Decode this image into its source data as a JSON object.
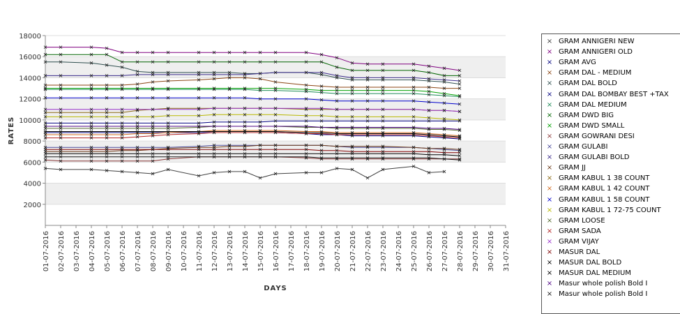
{
  "chart_data": {
    "type": "line",
    "title": "",
    "xlabel": "DAYS",
    "ylabel": "RATES",
    "ylim": [
      0,
      18000
    ],
    "yticks": [
      2000,
      4000,
      6000,
      8000,
      10000,
      12000,
      14000,
      16000,
      18000
    ],
    "grid": "alternating horizontal bands",
    "legend_position": "right",
    "marker": "x",
    "categories": [
      "01-07-2016",
      "02-07-2016",
      "03-07-2016",
      "04-07-2016",
      "05-07-2016",
      "06-07-2016",
      "07-07-2016",
      "08-07-2016",
      "09-07-2016",
      "10-07-2016",
      "11-07-2016",
      "12-07-2016",
      "13-07-2016",
      "14-07-2016",
      "15-07-2016",
      "16-07-2016",
      "17-07-2016",
      "18-07-2016",
      "19-07-2016",
      "20-07-2016",
      "21-07-2016",
      "22-07-2016",
      "23-07-2016",
      "24-07-2016",
      "25-07-2016",
      "26-07-2016",
      "27-07-2016",
      "28-07-2016",
      "29-07-2016",
      "30-07-2016",
      "31-07-2016"
    ],
    "series": [
      {
        "name": "GRAM ANNIGERI NEW",
        "color": "#404040",
        "values": [
          5400,
          5300,
          null,
          5300,
          5200,
          5100,
          5000,
          4900,
          5300,
          null,
          4700,
          5000,
          5100,
          5100,
          4500,
          4900,
          null,
          5000,
          5000,
          5400,
          5300,
          4500,
          5300,
          null,
          5600,
          5000,
          5100,
          null,
          null,
          null,
          null
        ]
      },
      {
        "name": "GRAM ANNIGERI OLD",
        "color": "#800080",
        "values": [
          16900,
          16900,
          null,
          16900,
          16800,
          16400,
          16400,
          16400,
          16400,
          null,
          16400,
          16400,
          16400,
          16400,
          16400,
          16400,
          null,
          16400,
          16200,
          15900,
          15400,
          15300,
          15300,
          null,
          15300,
          15100,
          14900,
          14700,
          null,
          null,
          null
        ]
      },
      {
        "name": "GRAM AVG",
        "color": "#000080",
        "values": [
          8800,
          8800,
          null,
          8800,
          8800,
          8800,
          8800,
          8800,
          8800,
          null,
          8800,
          8800,
          8800,
          8800,
          8800,
          8800,
          null,
          8700,
          8600,
          8600,
          8500,
          8500,
          8500,
          null,
          8500,
          8400,
          8300,
          8200,
          null,
          null,
          null
        ]
      },
      {
        "name": "GRAM DAL - MEDIUM",
        "color": "#8b4513",
        "values": [
          13300,
          13300,
          null,
          13300,
          13300,
          13300,
          13400,
          13600,
          13700,
          null,
          13800,
          13900,
          14000,
          14000,
          13900,
          13600,
          null,
          13300,
          13200,
          13100,
          13100,
          13100,
          13100,
          null,
          13100,
          13100,
          13000,
          13000,
          null,
          null,
          null
        ]
      },
      {
        "name": "GRAM DAL BOLD",
        "color": "#2f4f4f",
        "values": [
          15500,
          15500,
          null,
          15400,
          15200,
          15000,
          14600,
          14500,
          14500,
          null,
          14500,
          14500,
          14500,
          14400,
          14400,
          14500,
          null,
          14500,
          14300,
          14000,
          13800,
          13800,
          13800,
          null,
          13800,
          13700,
          13600,
          13400,
          null,
          null,
          null
        ]
      },
      {
        "name": "GRAM DAL BOMBAY BEST +TAX",
        "color": "#000080",
        "values": [
          9700,
          9700,
          null,
          9700,
          9700,
          9700,
          9700,
          9700,
          9700,
          null,
          9700,
          9800,
          9800,
          9800,
          9800,
          9900,
          null,
          9900,
          9900,
          9900,
          9900,
          9900,
          9900,
          null,
          9900,
          9900,
          9900,
          9900,
          null,
          null,
          null
        ]
      },
      {
        "name": "GRAM DAL MEDIUM",
        "color": "#1e8b57",
        "values": [
          12900,
          12900,
          null,
          12900,
          12900,
          12900,
          12900,
          12900,
          12900,
          null,
          12900,
          12900,
          12900,
          12900,
          12800,
          12800,
          null,
          12700,
          12600,
          12500,
          12500,
          12500,
          12500,
          null,
          12500,
          12400,
          12300,
          12200,
          null,
          null,
          null
        ]
      },
      {
        "name": "GRAM DWD BIG",
        "color": "#006400",
        "values": [
          16200,
          16200,
          null,
          16200,
          16200,
          15500,
          15500,
          15500,
          15500,
          null,
          15500,
          15500,
          15500,
          15500,
          15500,
          15500,
          null,
          15500,
          15500,
          15000,
          14700,
          14700,
          14700,
          null,
          14700,
          14500,
          14200,
          14200,
          null,
          null,
          null
        ]
      },
      {
        "name": "GRAM DWD SMALL",
        "color": "#00a000",
        "values": [
          13000,
          13000,
          null,
          13000,
          13000,
          13000,
          13000,
          13000,
          13000,
          null,
          13000,
          13000,
          13000,
          13000,
          13000,
          13000,
          null,
          12900,
          12800,
          12800,
          12800,
          12800,
          12800,
          null,
          12800,
          12700,
          12500,
          12300,
          null,
          null,
          null
        ]
      },
      {
        "name": "GRAM GOWRANI DESI",
        "color": "#8b3a3a",
        "values": [
          6200,
          6100,
          null,
          6100,
          6100,
          6100,
          6100,
          6100,
          6300,
          null,
          6500,
          6500,
          6500,
          6500,
          6500,
          6500,
          null,
          6400,
          6300,
          6300,
          6300,
          6300,
          6300,
          null,
          6300,
          6300,
          6300,
          6300,
          null,
          null,
          null
        ]
      },
      {
        "name": "GRAM GULABI",
        "color": "#4b4b9a",
        "values": [
          7400,
          7400,
          null,
          7400,
          7400,
          7400,
          7400,
          7400,
          7400,
          null,
          7500,
          7600,
          7600,
          7600,
          7600,
          7600,
          null,
          7600,
          7600,
          7500,
          7400,
          7400,
          7400,
          null,
          7400,
          7300,
          7200,
          7100,
          null,
          null,
          null
        ]
      },
      {
        "name": "GRAM GULABI BOLD",
        "color": "#3a2a8a",
        "values": [
          14200,
          14200,
          null,
          14200,
          14200,
          14200,
          14300,
          14300,
          14300,
          null,
          14300,
          14300,
          14300,
          14300,
          14400,
          14500,
          null,
          14500,
          14500,
          14200,
          14000,
          14000,
          14000,
          null,
          14000,
          13900,
          13800,
          13700,
          null,
          null,
          null
        ]
      },
      {
        "name": "GRAM JJ",
        "color": "#6b3a1a",
        "values": [
          7000,
          7000,
          null,
          7000,
          7000,
          7100,
          7100,
          7200,
          7300,
          null,
          7400,
          7400,
          7500,
          7500,
          7600,
          7600,
          null,
          7600,
          7600,
          7500,
          7500,
          7500,
          7500,
          null,
          7400,
          7300,
          7300,
          7200,
          null,
          null,
          null
        ]
      },
      {
        "name": "GRAM KABUL 1 38 COUNT",
        "color": "#8b6914",
        "values": [
          10700,
          10700,
          null,
          10700,
          10700,
          10700,
          10900,
          11000,
          11100,
          null,
          11100,
          11100,
          11100,
          11100,
          11100,
          11100,
          null,
          11000,
          11000,
          11000,
          11000,
          11000,
          11000,
          null,
          11000,
          10900,
          10900,
          10800,
          null,
          null,
          null
        ]
      },
      {
        "name": "GRAM KABUL 1 42 COUNT",
        "color": "#d2691e",
        "values": [
          8600,
          8600,
          null,
          8600,
          8600,
          8600,
          8700,
          8700,
          8800,
          null,
          8900,
          9000,
          9000,
          9000,
          9000,
          9000,
          null,
          8900,
          8900,
          8800,
          8800,
          8800,
          8800,
          null,
          8800,
          8700,
          8600,
          8500,
          null,
          null,
          null
        ]
      },
      {
        "name": "GRAM KABUL 1 58 COUNT",
        "color": "#0000cd",
        "values": [
          12100,
          12100,
          null,
          12100,
          12100,
          12100,
          12100,
          12100,
          12100,
          null,
          12100,
          12100,
          12100,
          12100,
          12000,
          12000,
          null,
          12000,
          11900,
          11800,
          11800,
          11800,
          11800,
          null,
          11800,
          11700,
          11600,
          11500,
          null,
          null,
          null
        ]
      },
      {
        "name": "GRAM KABUL 1 72-75 COUNT",
        "color": "#b8b800",
        "values": [
          10300,
          10300,
          null,
          10300,
          10300,
          10300,
          10300,
          10300,
          10400,
          null,
          10400,
          10500,
          10500,
          10500,
          10500,
          10500,
          null,
          10400,
          10400,
          10300,
          10300,
          10300,
          10300,
          null,
          10300,
          10200,
          10100,
          10000,
          null,
          null,
          null
        ]
      },
      {
        "name": "GRAM LOOSE",
        "color": "#556b2f",
        "values": [
          9200,
          9200,
          null,
          9200,
          9200,
          9200,
          9200,
          9200,
          9200,
          null,
          9300,
          9400,
          9400,
          9400,
          9400,
          9400,
          null,
          9300,
          9300,
          9200,
          9200,
          9200,
          9200,
          null,
          9200,
          9100,
          9100,
          9000,
          null,
          null,
          null
        ]
      },
      {
        "name": "GRAM SADA",
        "color": "#b22222",
        "values": [
          8300,
          8300,
          null,
          8300,
          8300,
          8300,
          8400,
          8500,
          8600,
          null,
          8700,
          8800,
          8800,
          8800,
          8800,
          8800,
          null,
          8700,
          8700,
          8600,
          8600,
          8600,
          8600,
          null,
          8600,
          8500,
          8400,
          8300,
          null,
          null,
          null
        ]
      },
      {
        "name": "GRAM VIJAY",
        "color": "#9932cc",
        "values": [
          11000,
          11000,
          null,
          11000,
          11000,
          11000,
          11000,
          11000,
          11000,
          null,
          11000,
          11100,
          11100,
          11100,
          11100,
          11100,
          null,
          11100,
          11100,
          11000,
          11000,
          11000,
          11000,
          null,
          11000,
          10900,
          10900,
          10800,
          null,
          null,
          null
        ]
      },
      {
        "name": "MASUR DAL",
        "color": "#800000",
        "values": [
          7200,
          7200,
          null,
          7200,
          7200,
          7200,
          7200,
          7200,
          7200,
          null,
          7200,
          7200,
          7200,
          7200,
          7200,
          7200,
          null,
          7200,
          7100,
          7100,
          7000,
          7000,
          7000,
          null,
          7000,
          7000,
          6900,
          6900,
          null,
          null,
          null
        ]
      },
      {
        "name": "MASUR DAL BOLD",
        "color": "#000000",
        "values": [
          8900,
          8900,
          null,
          8900,
          8900,
          8900,
          8900,
          8900,
          8900,
          null,
          8900,
          8900,
          8900,
          8900,
          8900,
          8900,
          null,
          8800,
          8800,
          8700,
          8700,
          8700,
          8700,
          null,
          8700,
          8600,
          8500,
          8400,
          null,
          null,
          null
        ]
      },
      {
        "name": "MASUR DAL MEDIUM",
        "color": "#000000",
        "values": [
          6800,
          6800,
          null,
          6800,
          6800,
          6800,
          6800,
          6800,
          6800,
          null,
          6800,
          6800,
          6800,
          6800,
          6800,
          6800,
          null,
          6800,
          6800,
          6800,
          6800,
          6800,
          6800,
          null,
          6800,
          6700,
          6700,
          6600,
          null,
          null,
          null
        ]
      },
      {
        "name": "Masur whole polish Bold I",
        "color": "#4b0082",
        "values": [
          9400,
          9400,
          null,
          9400,
          9400,
          9400,
          9400,
          9400,
          9400,
          null,
          9400,
          9400,
          9400,
          9400,
          9400,
          9400,
          null,
          9400,
          9300,
          9300,
          9300,
          9300,
          9300,
          null,
          9300,
          9200,
          9200,
          9100,
          null,
          null,
          null
        ]
      },
      {
        "name": "Masur whole polish Bold I",
        "color": "#1a1a1a",
        "values": [
          6500,
          6500,
          null,
          6500,
          6500,
          6500,
          6500,
          6500,
          6500,
          null,
          6500,
          6500,
          6500,
          6500,
          6500,
          6500,
          null,
          6500,
          6400,
          6400,
          6400,
          6400,
          6400,
          null,
          6400,
          6400,
          6300,
          6200,
          null,
          null,
          null
        ]
      }
    ]
  }
}
